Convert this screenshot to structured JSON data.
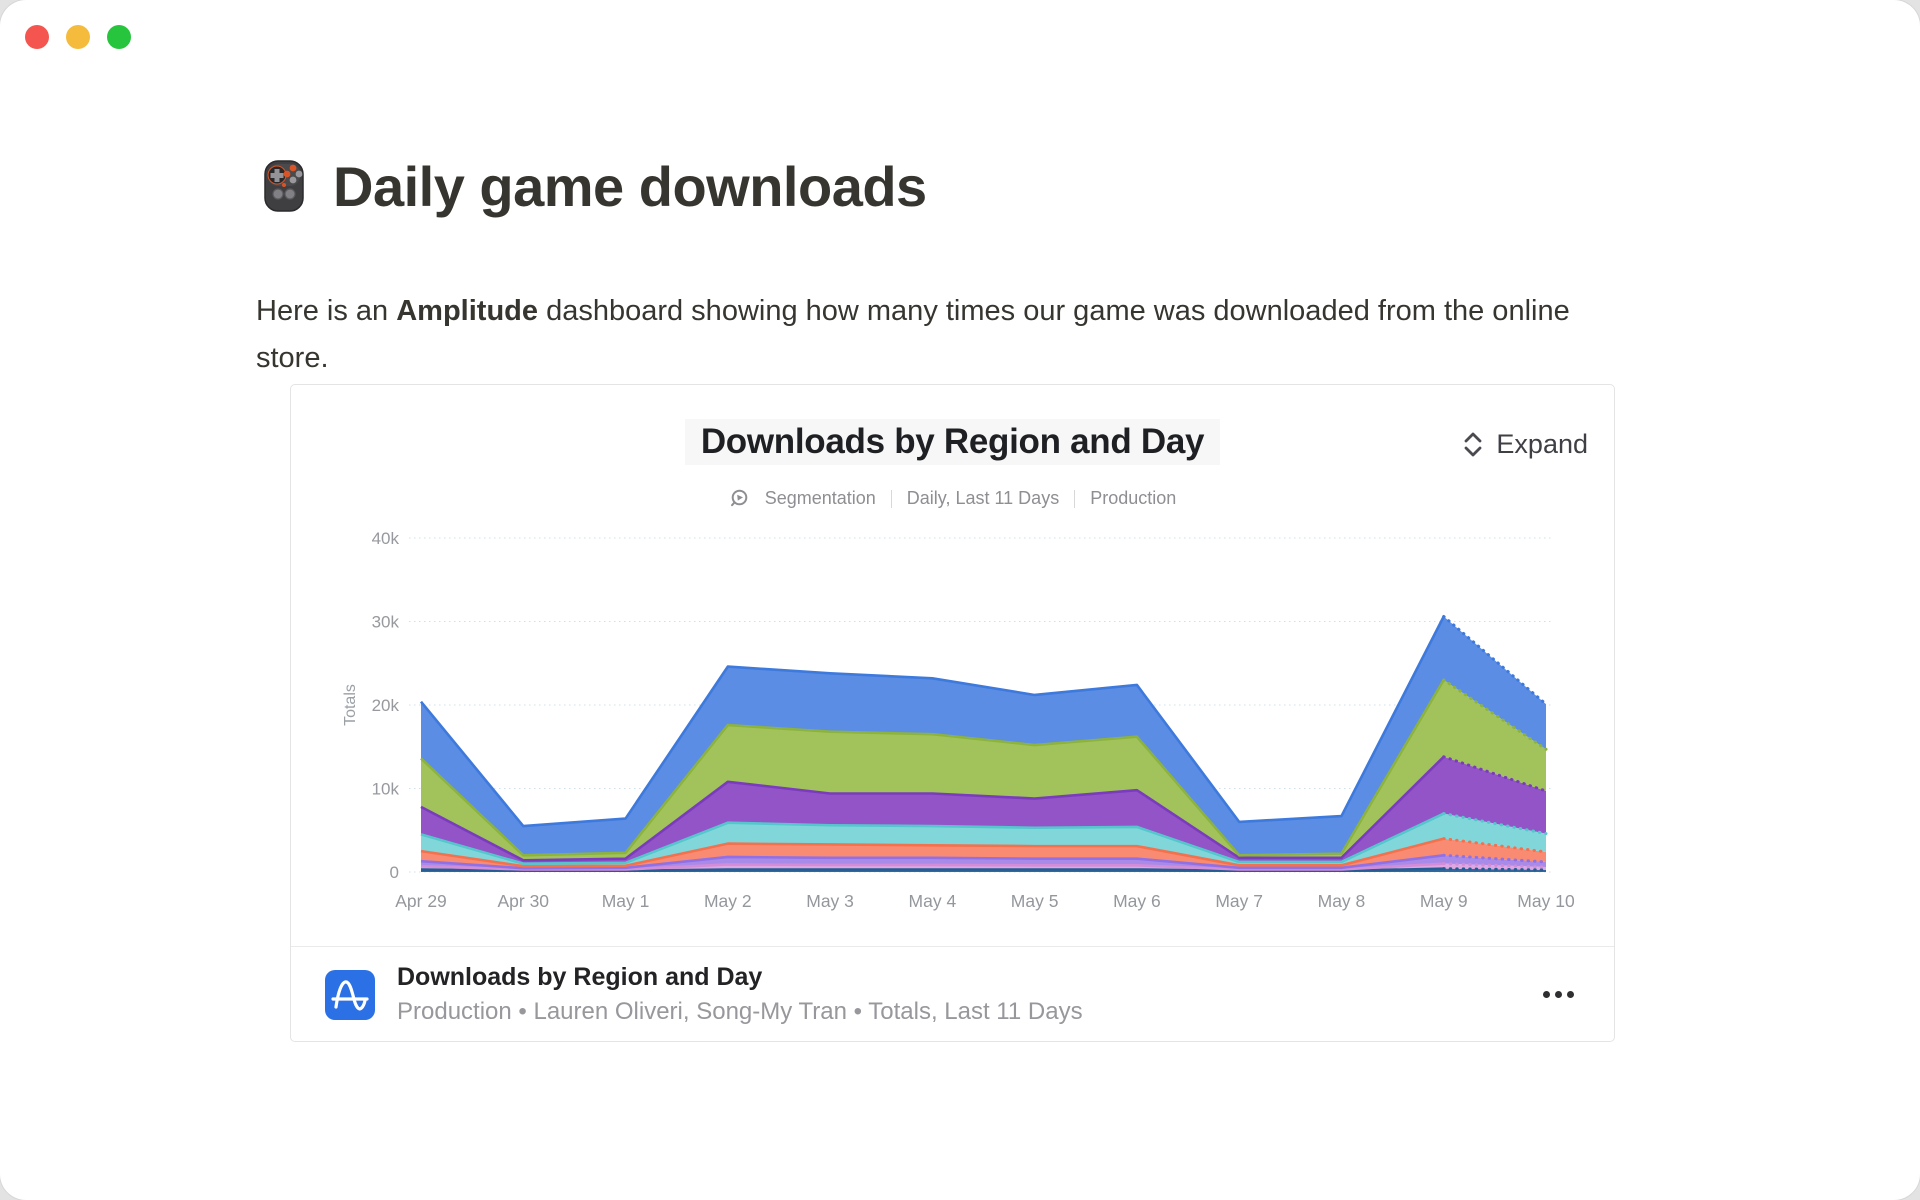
{
  "page": {
    "emoji": "🎮",
    "title": "Daily game downloads",
    "paragraph": {
      "prefix": "Here is an ",
      "bold": "Amplitude",
      "suffix": " dashboard showing how many times our game was downloaded from the online store."
    }
  },
  "card": {
    "header": {
      "title": "Downloads by Region and Day",
      "expand_label": "Expand",
      "expand_icon": "chevron-up-down-icon"
    },
    "meta": {
      "icon": "segmentation-icon",
      "items": [
        "Segmentation",
        "Daily, Last 11 Days",
        "Production"
      ]
    },
    "footer": {
      "logo": "amplitude-logo",
      "title": "Downloads by Region and Day",
      "subtitle": "Production • Lauren Oliveri, Song-My Tran • Totals, Last 11 Days",
      "menu_icon": "ellipsis-icon"
    }
  },
  "colors": {
    "traffic_lights": [
      "#f4564f",
      "#f5bb3c",
      "#27c53d"
    ],
    "amplitude_logo_blue": "#2B70E4",
    "gridline": "#cfe0e9",
    "axis_text": "#97999e"
  },
  "chart_data": {
    "type": "area",
    "stacked": true,
    "title": "Downloads by Region and Day",
    "ylabel": "Totals",
    "xlabel": "",
    "x_labels": [
      "Apr 29",
      "Apr 30",
      "May 1",
      "May 2",
      "May 3",
      "May 4",
      "May 5",
      "May 6",
      "May 7",
      "May 8",
      "May 9",
      "May 10"
    ],
    "y_ticks": [
      {
        "label": "0",
        "value": 0
      },
      {
        "label": "10k",
        "value": 10000
      },
      {
        "label": "20k",
        "value": 20000
      },
      {
        "label": "30k",
        "value": 30000
      },
      {
        "label": "40k",
        "value": 40000
      }
    ],
    "ylim": [
      0,
      40000
    ],
    "grid": "dotted-horizontal",
    "legend": "none",
    "series_order": "bottom-to-top",
    "last_segment_style": "dotted-provisional",
    "series": [
      {
        "name": "navy",
        "fill": "#2F699E",
        "edge": "#245D92",
        "values": [
          300,
          150,
          150,
          300,
          300,
          300,
          300,
          300,
          150,
          150,
          400,
          250
        ]
      },
      {
        "name": "pink",
        "fill": "#DEA6E3",
        "edge": "#D28CD8",
        "values": [
          400,
          150,
          150,
          600,
          550,
          550,
          500,
          500,
          150,
          150,
          600,
          350
        ]
      },
      {
        "name": "lavender",
        "fill": "#A88BE8",
        "edge": "#9070E4",
        "values": [
          600,
          150,
          200,
          900,
          850,
          850,
          800,
          800,
          200,
          200,
          1000,
          600
        ]
      },
      {
        "name": "salmon",
        "fill": "#F98B72",
        "edge": "#F4714E",
        "values": [
          1200,
          250,
          250,
          1600,
          1600,
          1500,
          1500,
          1500,
          300,
          300,
          2000,
          1200
        ]
      },
      {
        "name": "teal",
        "fill": "#81D6DA",
        "edge": "#55C6CC",
        "values": [
          2000,
          300,
          350,
          2500,
          2300,
          2300,
          2200,
          2300,
          400,
          400,
          3000,
          2200
        ]
      },
      {
        "name": "purple",
        "fill": "#9254C7",
        "edge": "#7A3CBC",
        "values": [
          3300,
          400,
          500,
          4900,
          3800,
          3900,
          3500,
          4400,
          500,
          500,
          6800,
          5100
        ]
      },
      {
        "name": "green",
        "fill": "#A2C35C",
        "edge": "#8DB33F",
        "values": [
          5800,
          600,
          700,
          6800,
          7400,
          7100,
          6400,
          6400,
          300,
          500,
          9200,
          5000
        ]
      },
      {
        "name": "blue",
        "fill": "#5B8DE5",
        "edge": "#3E79DC",
        "values": [
          6800,
          3500,
          4100,
          7000,
          7000,
          6700,
          6000,
          6200,
          4000,
          4500,
          7600,
          5400
        ]
      }
    ],
    "totals": [
      20400,
      5500,
      6400,
      24600,
      23800,
      23200,
      21200,
      22400,
      6000,
      6700,
      30600,
      20100
    ]
  }
}
